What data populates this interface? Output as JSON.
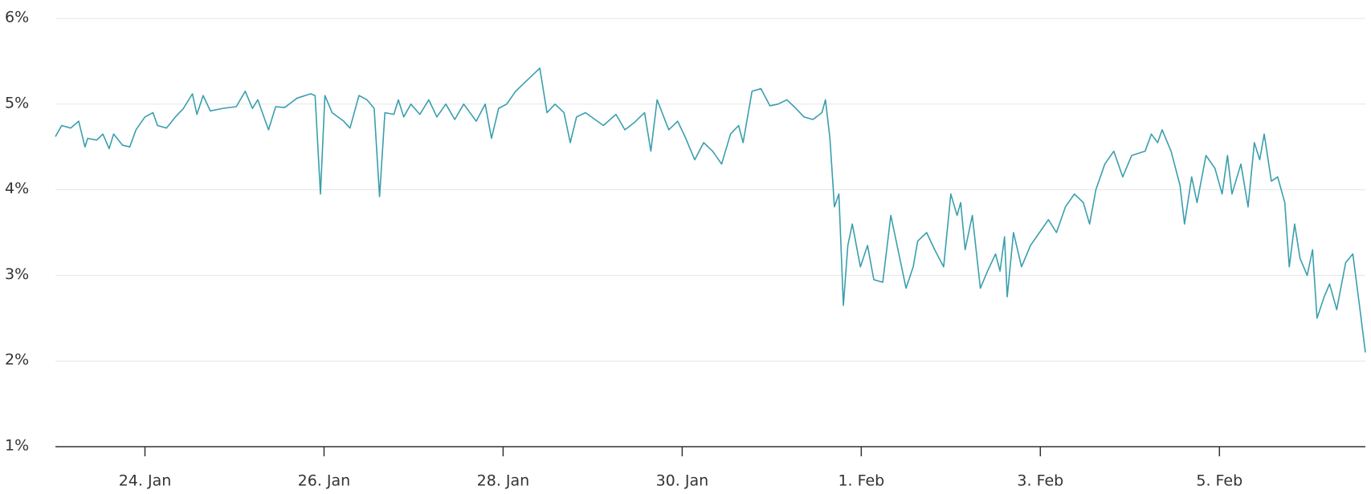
{
  "chart_data": {
    "type": "line",
    "x": [
      23.0,
      23.07,
      23.17,
      23.26,
      23.33,
      23.36,
      23.46,
      23.53,
      23.6,
      23.65,
      23.75,
      23.83,
      23.9,
      24.0,
      24.09,
      24.14,
      24.24,
      24.34,
      24.43,
      24.53,
      24.58,
      24.65,
      24.73,
      24.87,
      25.02,
      25.12,
      25.2,
      25.26,
      25.38,
      25.46,
      25.56,
      25.7,
      25.85,
      25.9,
      25.96,
      26.01,
      26.09,
      26.22,
      26.29,
      26.39,
      26.48,
      26.56,
      26.62,
      26.68,
      26.78,
      26.83,
      26.89,
      26.97,
      27.07,
      27.17,
      27.26,
      27.36,
      27.46,
      27.56,
      27.7,
      27.8,
      27.87,
      27.95,
      28.04,
      28.14,
      28.24,
      28.34,
      28.41,
      28.49,
      28.58,
      28.68,
      28.75,
      28.82,
      28.92,
      29.12,
      29.26,
      29.36,
      29.46,
      29.58,
      29.65,
      29.72,
      29.85,
      29.95,
      30.04,
      30.14,
      30.24,
      30.34,
      30.44,
      30.54,
      30.63,
      30.68,
      30.78,
      30.88,
      30.98,
      31.07,
      31.17,
      31.27,
      31.36,
      31.46,
      31.56,
      31.6,
      31.65,
      31.7,
      31.75,
      31.8,
      31.85,
      31.9,
      31.99,
      32.07,
      32.14,
      32.24,
      32.33,
      32.43,
      32.5,
      32.58,
      32.63,
      32.73,
      32.82,
      32.92,
      33.0,
      33.07,
      33.11,
      33.16,
      33.24,
      33.33,
      33.41,
      33.5,
      33.55,
      33.6,
      33.63,
      33.7,
      33.79,
      33.89,
      33.99,
      34.09,
      34.18,
      34.28,
      34.38,
      34.48,
      34.55,
      34.62,
      34.72,
      34.82,
      34.92,
      35.02,
      35.17,
      35.24,
      35.31,
      35.36,
      35.46,
      35.56,
      35.61,
      35.69,
      35.75,
      35.85,
      35.95,
      36.03,
      36.09,
      36.14,
      36.24,
      36.32,
      36.39,
      36.45,
      36.5,
      36.58,
      36.65,
      36.73,
      36.78,
      36.84,
      36.9,
      36.98,
      37.04,
      37.09,
      37.17,
      37.23,
      37.31,
      37.41,
      37.49,
      37.57,
      37.63
    ],
    "series": [
      {
        "color": "#3a9fad",
        "values": [
          4.62,
          4.75,
          4.72,
          4.8,
          4.5,
          4.6,
          4.58,
          4.65,
          4.48,
          4.65,
          4.52,
          4.5,
          4.7,
          4.85,
          4.9,
          4.75,
          4.72,
          4.85,
          4.95,
          5.12,
          4.88,
          5.1,
          4.92,
          4.95,
          4.97,
          5.15,
          4.95,
          5.05,
          4.7,
          4.97,
          4.96,
          5.07,
          5.12,
          5.1,
          3.95,
          5.1,
          4.9,
          4.8,
          4.72,
          5.1,
          5.05,
          4.95,
          3.92,
          4.9,
          4.88,
          5.05,
          4.85,
          5.0,
          4.88,
          5.05,
          4.85,
          5.0,
          4.82,
          5.0,
          4.8,
          5.0,
          4.6,
          4.95,
          5.0,
          5.15,
          5.25,
          5.35,
          5.42,
          4.9,
          5.0,
          4.9,
          4.55,
          4.85,
          4.9,
          4.75,
          4.88,
          4.7,
          4.78,
          4.9,
          4.45,
          5.05,
          4.7,
          4.8,
          4.6,
          4.35,
          4.55,
          4.45,
          4.3,
          4.65,
          4.75,
          4.55,
          5.15,
          5.18,
          4.98,
          5.0,
          5.05,
          4.95,
          4.85,
          4.82,
          4.9,
          5.05,
          4.6,
          3.8,
          3.95,
          2.65,
          3.35,
          3.6,
          3.1,
          3.35,
          2.95,
          2.92,
          3.7,
          3.2,
          2.85,
          3.1,
          3.4,
          3.5,
          3.3,
          3.1,
          3.95,
          3.7,
          3.85,
          3.3,
          3.7,
          2.85,
          3.05,
          3.25,
          3.05,
          3.45,
          2.75,
          3.5,
          3.1,
          3.35,
          3.5,
          3.65,
          3.5,
          3.8,
          3.95,
          3.85,
          3.6,
          4.0,
          4.3,
          4.45,
          4.15,
          4.4,
          4.45,
          4.65,
          4.55,
          4.7,
          4.45,
          4.05,
          3.6,
          4.15,
          3.85,
          4.4,
          4.25,
          3.95,
          4.4,
          3.95,
          4.3,
          3.8,
          4.55,
          4.35,
          4.65,
          4.1,
          4.15,
          3.85,
          3.1,
          3.6,
          3.2,
          3.0,
          3.3,
          2.5,
          2.75,
          2.9,
          2.6,
          3.15,
          3.25,
          2.6,
          2.1
        ]
      }
    ],
    "xlim": [
      23.0,
      37.63
    ],
    "xticks": [
      {
        "value": 24,
        "label": "24. Jan"
      },
      {
        "value": 26,
        "label": "26. Jan"
      },
      {
        "value": 28,
        "label": "28. Jan"
      },
      {
        "value": 30,
        "label": "30. Jan"
      },
      {
        "value": 32,
        "label": "1. Feb"
      },
      {
        "value": 34,
        "label": "3. Feb"
      },
      {
        "value": 36,
        "label": "5. Feb"
      }
    ],
    "ylim": [
      1,
      6
    ],
    "yticks": [
      {
        "value": 1,
        "label": "1%"
      },
      {
        "value": 2,
        "label": "2%"
      },
      {
        "value": 3,
        "label": "3%"
      },
      {
        "value": 4,
        "label": "4%"
      },
      {
        "value": 5,
        "label": "5%"
      },
      {
        "value": 6,
        "label": "6%"
      }
    ],
    "grid": true
  }
}
